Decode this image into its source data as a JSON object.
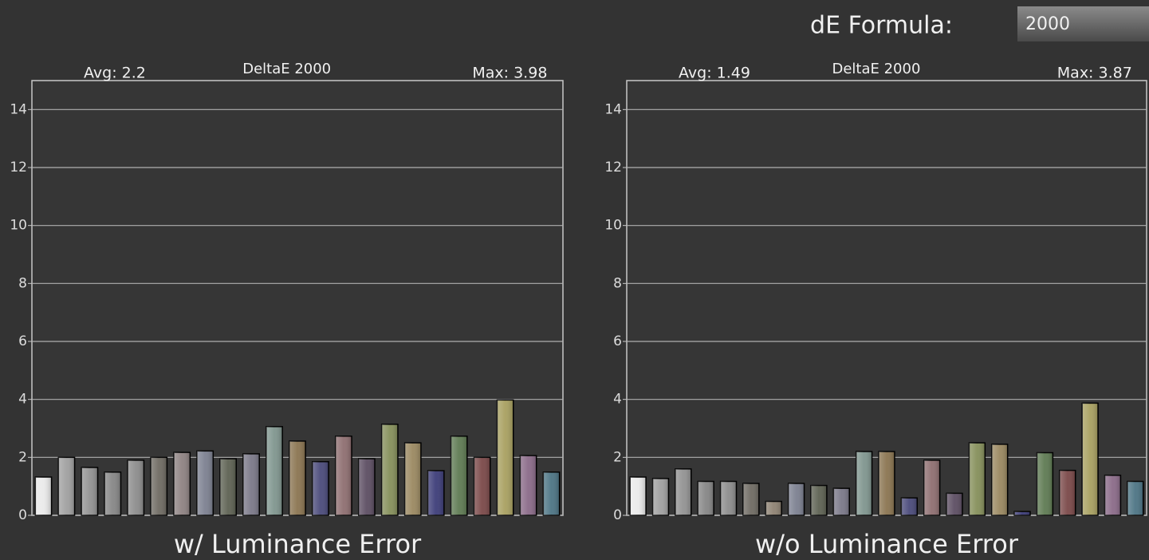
{
  "header": {
    "label": "dE Formula:",
    "value": "2000"
  },
  "chart_data": [
    {
      "type": "bar",
      "title": "DeltaE 2000",
      "annotations": [
        "Avg: 2.2",
        "Max: 3.98"
      ],
      "x_label": "w/ Luminance Error",
      "values": [
        1.32,
        2.0,
        1.65,
        1.49,
        1.9,
        2.0,
        2.17,
        2.22,
        1.95,
        2.12,
        3.06,
        2.56,
        1.85,
        2.73,
        1.95,
        3.14,
        2.5,
        1.54,
        2.73,
        2.0,
        3.98,
        2.06,
        1.49
      ],
      "colors": [
        "#eaeaea",
        "#a0a0a0",
        "#929292",
        "#868686",
        "#8c8c8c",
        "#6e6a62",
        "#8e8282",
        "#7c8090",
        "#5d6152",
        "#7a7888",
        "#7f958e",
        "#8a7450",
        "#4a4a7a",
        "#8e6e70",
        "#5c4d62",
        "#858f5a",
        "#9a8860",
        "#3c3c78",
        "#5e7a52",
        "#7a4848",
        "#a8a060",
        "#8a6a88",
        "#4c7484"
      ],
      "ylim": [
        0,
        15
      ],
      "yticks": [
        0,
        2,
        4,
        6,
        8,
        10,
        12,
        14
      ],
      "grid": true
    },
    {
      "type": "bar",
      "title": "DeltaE 2000",
      "annotations": [
        "Avg: 1.49",
        "Max: 3.87"
      ],
      "x_label": "w/o Luminance Error",
      "values": [
        1.32,
        1.27,
        1.6,
        1.17,
        1.17,
        1.1,
        0.48,
        1.1,
        1.03,
        0.93,
        2.2,
        2.2,
        0.6,
        1.9,
        0.76,
        2.5,
        2.45,
        0.13,
        2.16,
        1.55,
        3.87,
        1.38,
        1.17
      ],
      "colors": [
        "#eaeaea",
        "#a0a0a0",
        "#929292",
        "#868686",
        "#8c8c8c",
        "#6e6a62",
        "#8e8272",
        "#7c8090",
        "#5d6152",
        "#7a7888",
        "#7f958e",
        "#8a7450",
        "#4a4a7a",
        "#8e6e70",
        "#5c4d62",
        "#858f5a",
        "#9a8860",
        "#3c3c78",
        "#5e7a52",
        "#7a4848",
        "#a8a060",
        "#8a6a88",
        "#4c7484"
      ],
      "ylim": [
        0,
        15
      ],
      "yticks": [
        0,
        2,
        4,
        6,
        8,
        10,
        12,
        14
      ],
      "grid": true
    }
  ]
}
